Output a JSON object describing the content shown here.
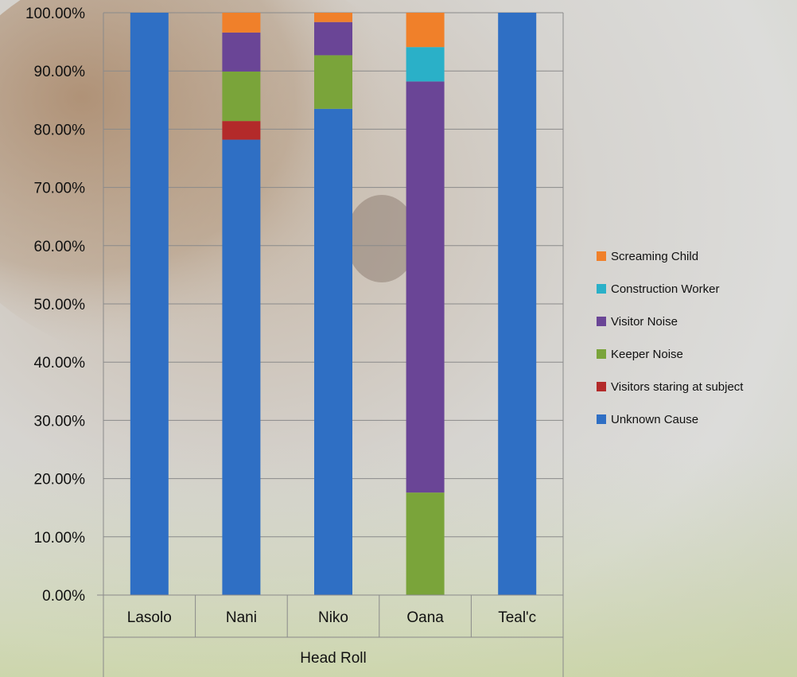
{
  "chart_data": {
    "type": "bar",
    "stacked": true,
    "categories": [
      "Lasolo",
      "Nani",
      "Niko",
      "Oana",
      "Teal'c"
    ],
    "group_label": "Head Roll",
    "ylim": [
      0,
      1
    ],
    "yticks": [
      "0.00%",
      "10.00%",
      "20.00%",
      "30.00%",
      "40.00%",
      "50.00%",
      "60.00%",
      "70.00%",
      "80.00%",
      "90.00%",
      "100.00%"
    ],
    "grid": true,
    "legend_position": "right",
    "series": [
      {
        "name": "Unknown Cause",
        "color": "#2f6fc4",
        "values": [
          1.0,
          0.782,
          0.835,
          0.0,
          1.0
        ]
      },
      {
        "name": "Visitors staring at subject",
        "color": "#b32a2a",
        "values": [
          0.0,
          0.032,
          0.0,
          0.0,
          0.0
        ]
      },
      {
        "name": "Keeper Noise",
        "color": "#7aa43a",
        "values": [
          0.0,
          0.085,
          0.092,
          0.176,
          0.0
        ]
      },
      {
        "name": "Visitor Noise",
        "color": "#6a4596",
        "values": [
          0.0,
          0.067,
          0.057,
          0.706,
          0.0
        ]
      },
      {
        "name": "Construction Worker",
        "color": "#2ab0c8",
        "values": [
          0.0,
          0.0,
          0.0,
          0.059,
          0.0
        ]
      },
      {
        "name": "Screaming Child",
        "color": "#f0802a",
        "values": [
          0.0,
          0.034,
          0.016,
          0.059,
          0.0
        ]
      }
    ]
  }
}
